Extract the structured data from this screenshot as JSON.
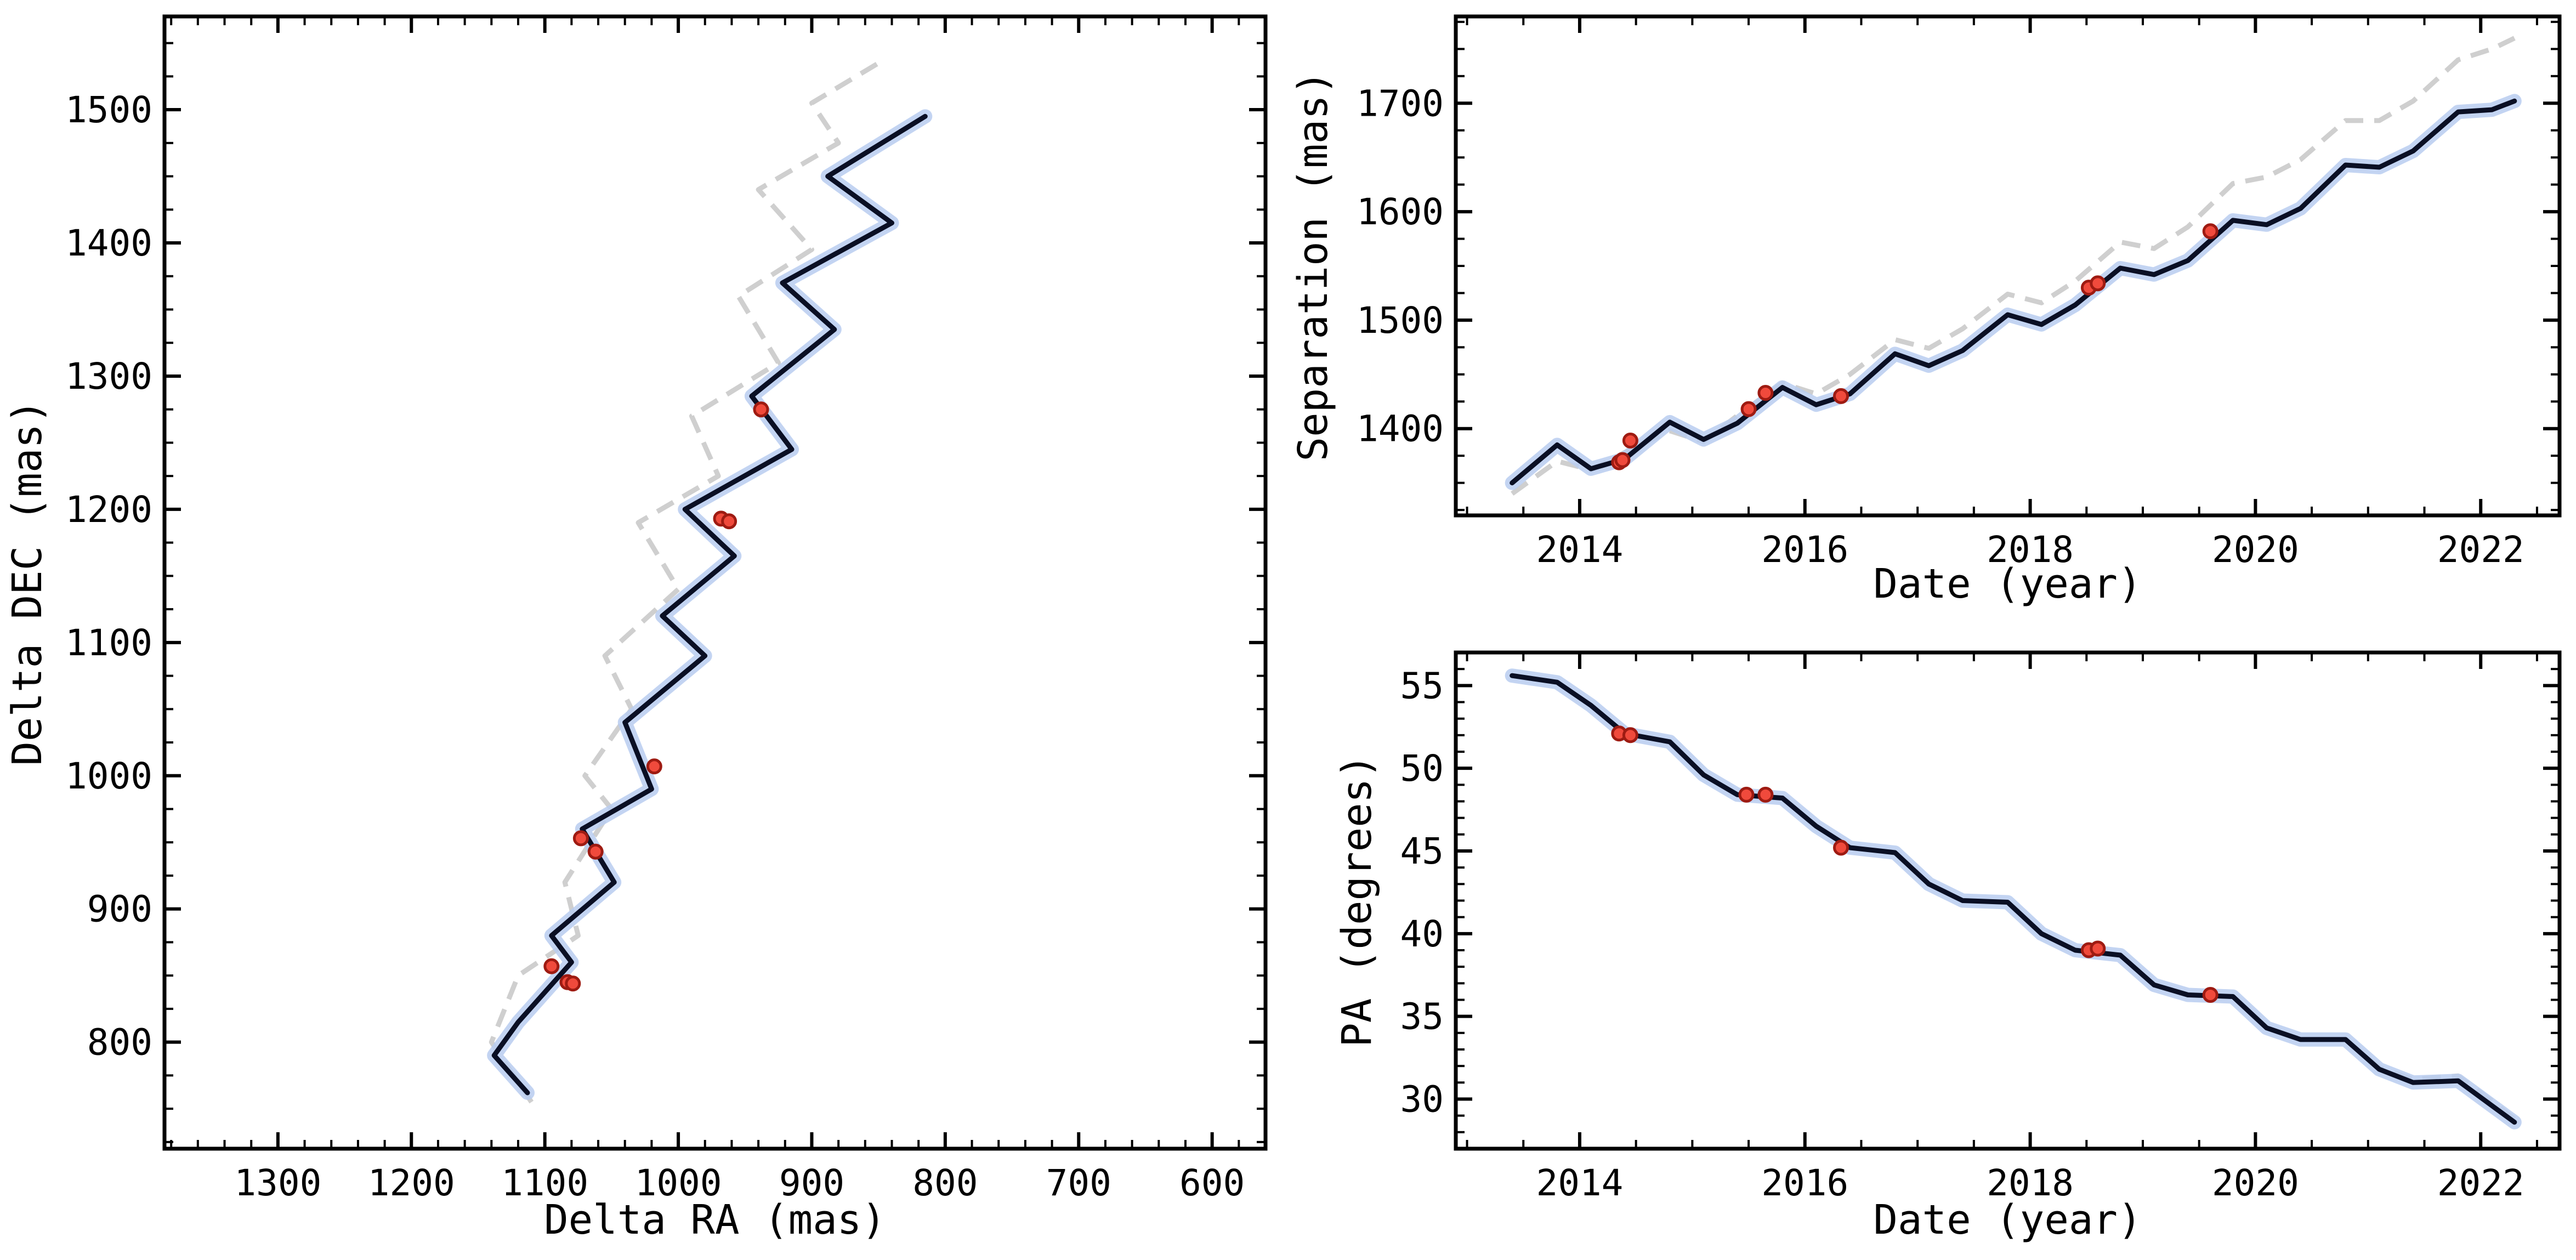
{
  "colors": {
    "model": "#0a0f24",
    "model_band": "#b9cdf0",
    "reference": "#cfcfcf",
    "observations": "#f04a3c",
    "observation_edge": "#9e1b12",
    "axes": "#000000"
  },
  "chart_data": [
    {
      "id": "sky",
      "type": "line",
      "xlabel": "Delta RA (mas)",
      "ylabel": "Delta DEC (mas)",
      "xlim": [
        1385,
        560
      ],
      "ylim": [
        720,
        1570
      ],
      "x_inverted": true,
      "xticks": [
        1300,
        1200,
        1100,
        1000,
        900,
        800,
        700,
        600
      ],
      "yticks": [
        800,
        900,
        1000,
        1100,
        1200,
        1300,
        1400,
        1500
      ],
      "grid": false,
      "legend": "none",
      "series": [
        {
          "role": "reference",
          "style": "dashed",
          "x": [
            1110,
            1140,
            1120,
            1075,
            1085,
            1050,
            1070,
            1035,
            1055,
            1000,
            1030,
            970,
            990,
            925,
            955,
            900,
            940,
            880,
            900,
            850
          ],
          "y": [
            755,
            800,
            850,
            880,
            920,
            975,
            1000,
            1050,
            1090,
            1140,
            1190,
            1225,
            1270,
            1310,
            1360,
            1395,
            1440,
            1475,
            1505,
            1535
          ]
        },
        {
          "role": "model",
          "style": "solid",
          "band": true,
          "x": [
            1113,
            1138,
            1120,
            1080,
            1095,
            1048,
            1072,
            1020,
            1040,
            980,
            1012,
            958,
            995,
            915,
            945,
            883,
            922,
            840,
            888,
            815
          ],
          "y": [
            762,
            790,
            815,
            860,
            880,
            920,
            960,
            990,
            1040,
            1090,
            1120,
            1165,
            1200,
            1245,
            1285,
            1335,
            1370,
            1415,
            1450,
            1495
          ]
        },
        {
          "role": "observations",
          "style": "markers",
          "x": [
            1095,
            1083,
            1079,
            1073,
            1062,
            1018,
            968,
            962,
            938
          ],
          "y": [
            857,
            845,
            844,
            953,
            943,
            1007,
            1193,
            1191,
            1275
          ]
        }
      ]
    },
    {
      "id": "separation",
      "type": "line",
      "xlabel": "Date (year)",
      "ylabel": "Separation (mas)",
      "xlim": [
        2012.9,
        2022.7
      ],
      "ylim": [
        1320,
        1780
      ],
      "xticks": [
        2014,
        2016,
        2018,
        2020,
        2022
      ],
      "yticks": [
        1400,
        1500,
        1600,
        1700
      ],
      "grid": false,
      "legend": "none",
      "series": [
        {
          "role": "reference",
          "style": "dashed",
          "x": [
            2013.4,
            2013.8,
            2014.1,
            2014.4,
            2014.8,
            2015.1,
            2015.4,
            2015.8,
            2016.1,
            2016.4,
            2016.8,
            2017.1,
            2017.4,
            2017.8,
            2018.1,
            2018.4,
            2018.8,
            2019.1,
            2019.4,
            2019.8,
            2020.1,
            2020.4,
            2020.8,
            2021.1,
            2021.4,
            2021.8,
            2022.1,
            2022.3
          ],
          "y": [
            1340,
            1370,
            1362,
            1378,
            1398,
            1388,
            1412,
            1442,
            1432,
            1450,
            1482,
            1474,
            1492,
            1524,
            1516,
            1536,
            1572,
            1566,
            1586,
            1626,
            1632,
            1648,
            1684,
            1684,
            1702,
            1740,
            1750,
            1760
          ]
        },
        {
          "role": "model",
          "style": "solid",
          "band": true,
          "x": [
            2013.4,
            2013.8,
            2014.1,
            2014.4,
            2014.8,
            2015.1,
            2015.4,
            2015.8,
            2016.1,
            2016.4,
            2016.8,
            2017.1,
            2017.4,
            2017.8,
            2018.1,
            2018.4,
            2018.8,
            2019.1,
            2019.4,
            2019.8,
            2020.1,
            2020.4,
            2020.8,
            2021.1,
            2021.4,
            2021.8,
            2022.1,
            2022.3
          ],
          "y": [
            1350,
            1385,
            1363,
            1372,
            1406,
            1390,
            1405,
            1438,
            1422,
            1432,
            1469,
            1458,
            1472,
            1505,
            1496,
            1514,
            1548,
            1542,
            1555,
            1592,
            1588,
            1603,
            1643,
            1641,
            1656,
            1692,
            1694,
            1702
          ]
        },
        {
          "role": "observations",
          "style": "markers",
          "x": [
            2014.35,
            2014.38,
            2014.45,
            2015.5,
            2015.65,
            2016.32,
            2018.52,
            2018.6,
            2019.6
          ],
          "y": [
            1369,
            1371,
            1389,
            1418,
            1433,
            1430,
            1530,
            1534,
            1582
          ]
        }
      ]
    },
    {
      "id": "position-angle",
      "type": "line",
      "xlabel": "Date (year)",
      "ylabel": "PA (degrees)",
      "xlim": [
        2012.9,
        2022.7
      ],
      "ylim": [
        27,
        57
      ],
      "xticks": [
        2014,
        2016,
        2018,
        2020,
        2022
      ],
      "yticks": [
        30,
        35,
        40,
        45,
        50,
        55
      ],
      "grid": false,
      "legend": "none",
      "series": [
        {
          "role": "reference",
          "style": "dashed",
          "x": [
            2013.4,
            2013.8,
            2014.1,
            2014.4,
            2014.8,
            2015.1,
            2015.4,
            2015.8,
            2016.1,
            2016.4,
            2016.8,
            2017.1,
            2017.4,
            2017.8,
            2018.1,
            2018.4,
            2018.8,
            2019.1,
            2019.4,
            2019.8,
            2020.1,
            2020.4,
            2020.8,
            2021.1,
            2021.4,
            2021.8,
            2022.1,
            2022.3
          ],
          "y": [
            55.6,
            55.2,
            53.8,
            52.1,
            51.6,
            49.6,
            48.4,
            48.2,
            46.5,
            45.2,
            44.9,
            43.0,
            42.0,
            41.9,
            40.0,
            39.0,
            38.7,
            36.9,
            36.3,
            36.2,
            34.3,
            33.6,
            33.6,
            31.9,
            31.2,
            31.4,
            29.9,
            28.8
          ]
        },
        {
          "role": "model",
          "style": "solid",
          "band": true,
          "x": [
            2013.4,
            2013.8,
            2014.1,
            2014.4,
            2014.8,
            2015.1,
            2015.4,
            2015.8,
            2016.1,
            2016.4,
            2016.8,
            2017.1,
            2017.4,
            2017.8,
            2018.1,
            2018.4,
            2018.8,
            2019.1,
            2019.4,
            2019.8,
            2020.1,
            2020.4,
            2020.8,
            2021.1,
            2021.4,
            2021.8,
            2022.1,
            2022.3
          ],
          "y": [
            55.6,
            55.2,
            53.8,
            52.1,
            51.6,
            49.6,
            48.4,
            48.2,
            46.5,
            45.2,
            44.9,
            43.0,
            42.0,
            41.9,
            40.0,
            39.0,
            38.7,
            36.9,
            36.3,
            36.2,
            34.3,
            33.6,
            33.6,
            31.8,
            31.0,
            31.1,
            29.6,
            28.6
          ]
        },
        {
          "role": "observations",
          "style": "markers",
          "x": [
            2014.35,
            2014.45,
            2015.48,
            2015.65,
            2016.32,
            2018.52,
            2018.6,
            2019.6
          ],
          "y": [
            52.1,
            52.0,
            48.4,
            48.4,
            45.2,
            39.0,
            39.1,
            36.3
          ]
        }
      ]
    }
  ]
}
